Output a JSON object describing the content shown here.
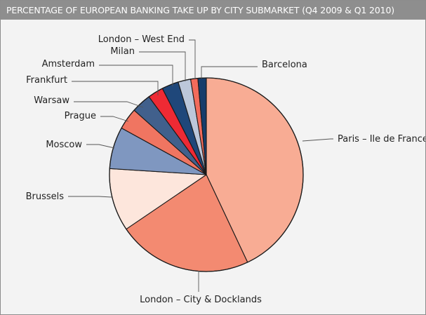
{
  "title": "PERCENTAGE OF EUROPEAN BANKING TAKE UP BY CITY SUBMARKET (Q4 2009 & Q1 2010)",
  "chart_data": {
    "type": "pie",
    "title": "PERCENTAGE OF EUROPEAN BANKING TAKE UP BY CITY SUBMARKET (Q4 2009 & Q1 2010)",
    "legend": "none",
    "slices": [
      {
        "label": "Paris – Ile de France",
        "value": 43.0,
        "color": "#f8ac94"
      },
      {
        "label": "London – City & Docklands",
        "value": 22.5,
        "color": "#f38a71"
      },
      {
        "label": "Brussels",
        "value": 10.5,
        "color": "#fde6dc"
      },
      {
        "label": "Moscow",
        "value": 7.0,
        "color": "#7f97c0"
      },
      {
        "label": "Prague",
        "value": 3.6,
        "color": "#f07561"
      },
      {
        "label": "Warsaw",
        "value": 3.3,
        "color": "#41608c"
      },
      {
        "label": "Frankfurt",
        "value": 2.6,
        "color": "#ee2a34"
      },
      {
        "label": "Amsterdam",
        "value": 2.8,
        "color": "#1f477a"
      },
      {
        "label": "Milan",
        "value": 2.1,
        "color": "#bcc7da"
      },
      {
        "label": "London – West End",
        "value": 1.2,
        "color": "#f26b5b"
      },
      {
        "label": "Barcelona",
        "value": 1.4,
        "color": "#173d6b"
      }
    ]
  }
}
